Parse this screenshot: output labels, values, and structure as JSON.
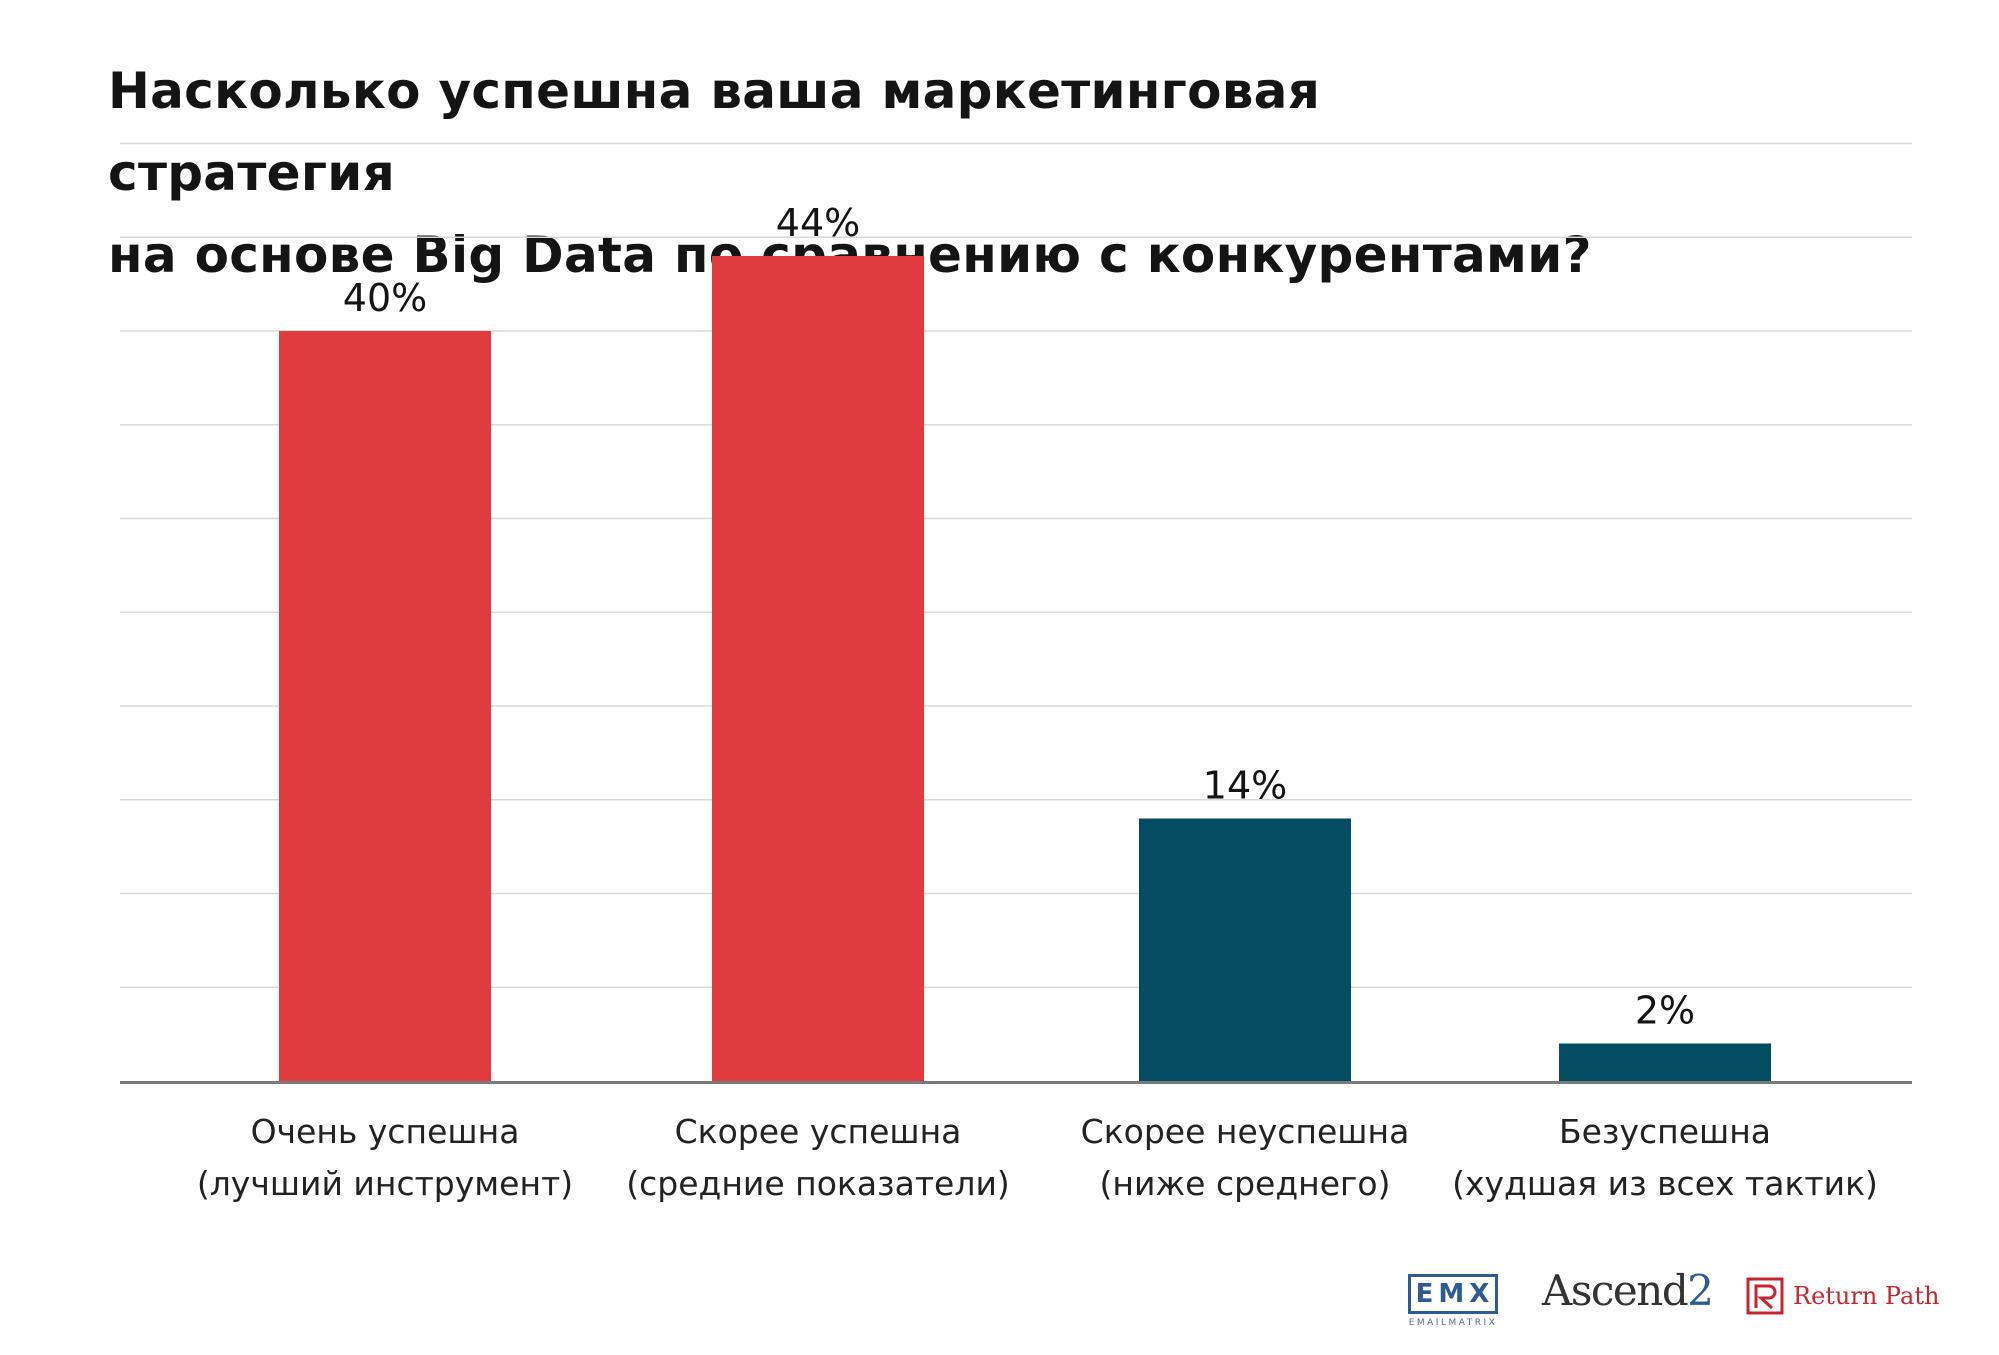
{
  "title_lines": [
    "Насколько успешна ваша маркетинговая стратегия",
    "на основе Big Data по сравнению с конкурентами?"
  ],
  "chart_data": {
    "type": "bar",
    "title": "Насколько успешна ваша маркетинговая стратегия на основе Big Data по сравнению с конкурентами?",
    "categories": [
      [
        "Очень успешна",
        "(лучший инструмент)"
      ],
      [
        "Скорее успешна",
        "(средние показатели)"
      ],
      [
        "Скорее неуспешна",
        "(ниже среднего)"
      ],
      [
        "Безуспешна",
        "(худшая из всех тактик)"
      ]
    ],
    "values": [
      40,
      44,
      14,
      2
    ],
    "value_labels": [
      "40%",
      "44%",
      "14%",
      "2%"
    ],
    "unit": "%",
    "ylim": [
      0,
      50
    ],
    "grid": true,
    "gridline_step": 5,
    "xlabel": "",
    "ylabel": "",
    "bar_colors": [
      "#e03c40",
      "#e03c40",
      "#044c62",
      "#044c62"
    ]
  },
  "colors": {
    "success": "#e03c40",
    "fail": "#044c62",
    "grid": "#d8d8d8",
    "axis": "#7a7a7a"
  },
  "logos": {
    "emx": {
      "mark": "EMX",
      "sub": "EMAILMATRIX"
    },
    "ascend": {
      "name": "Ascend",
      "suffix": "2"
    },
    "returnpath": {
      "name": "Return Path"
    }
  }
}
